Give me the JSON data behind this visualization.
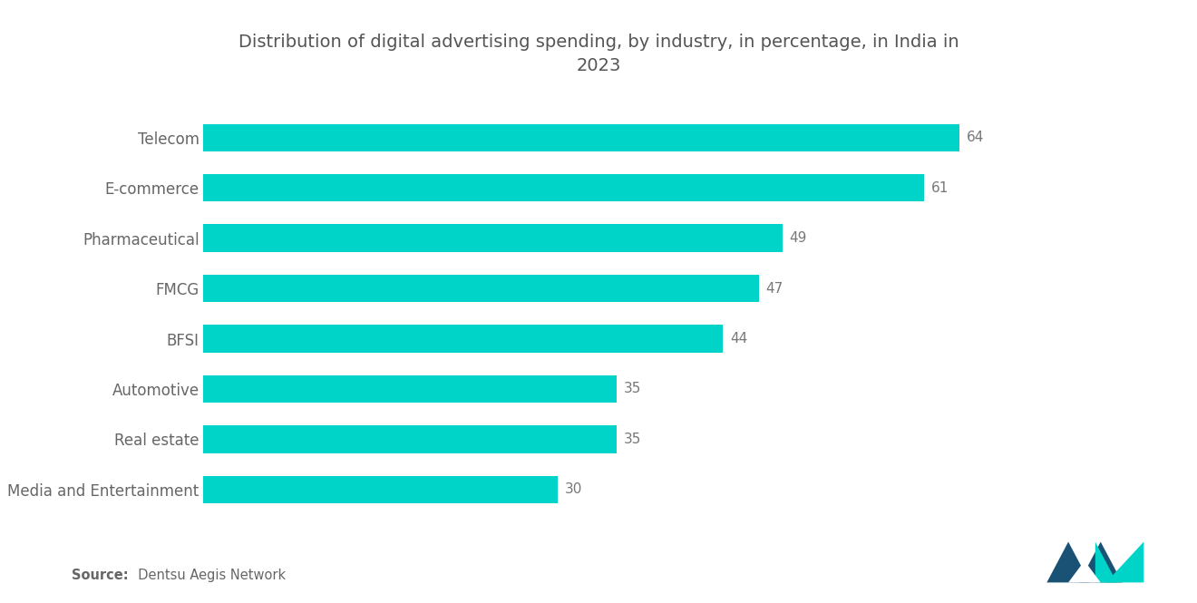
{
  "title": "Distribution of digital advertising spending, by industry, in percentage, in India in\n2023",
  "categories": [
    "Media and Entertainment",
    "Real estate",
    "Automotive",
    "BFSI",
    "FMCG",
    "Pharmaceutical",
    "E-commerce",
    "Telecom"
  ],
  "values": [
    30,
    35,
    35,
    44,
    47,
    49,
    61,
    64
  ],
  "bar_color": "#00D4C8",
  "background_color": "#ffffff",
  "title_color": "#555555",
  "label_color": "#666666",
  "value_color": "#777777",
  "source_bold": "Source:",
  "source_rest": "  Dentsu Aegis Network",
  "title_fontsize": 14,
  "label_fontsize": 12,
  "value_fontsize": 11,
  "source_fontsize": 10.5,
  "xlim": [
    0,
    75
  ],
  "bar_height": 0.55,
  "logo_color_dark": "#1a5276",
  "logo_color_light": "#00D4C8"
}
